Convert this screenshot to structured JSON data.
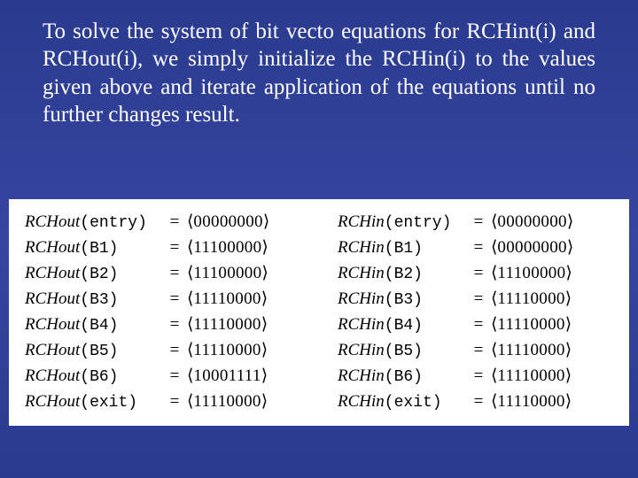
{
  "slide": {
    "background_gradient": [
      "#2a3a8e",
      "#3646a0",
      "#2a3a8e"
    ],
    "text_color": "#ffffff",
    "panel_background": "#ffffff",
    "panel_text_color": "#000000",
    "paragraph_fontsize": 25,
    "equation_fontsize": 19
  },
  "paragraph": "To solve the system of bit vecto equations for RCHint(i) and RCHout(i), we simply initialize the RCHin(i) to the values given above and iterate application of the equations until no further changes result.",
  "labels": {
    "fn_out": "RCHout",
    "fn_in": "RCHin",
    "eq": "=",
    "open": "⟨",
    "close": "⟩"
  },
  "rows": [
    {
      "arg": "entry",
      "out": "00000000",
      "in": "00000000"
    },
    {
      "arg": "B1",
      "out": "11100000",
      "in": "00000000"
    },
    {
      "arg": "B2",
      "out": "11100000",
      "in": "11100000"
    },
    {
      "arg": "B3",
      "out": "11110000",
      "in": "11110000"
    },
    {
      "arg": "B4",
      "out": "11110000",
      "in": "11110000"
    },
    {
      "arg": "B5",
      "out": "11110000",
      "in": "11110000"
    },
    {
      "arg": "B6",
      "out": "10001111",
      "in": "11110000"
    },
    {
      "arg": "exit",
      "out": "11110000",
      "in": "11110000"
    }
  ]
}
